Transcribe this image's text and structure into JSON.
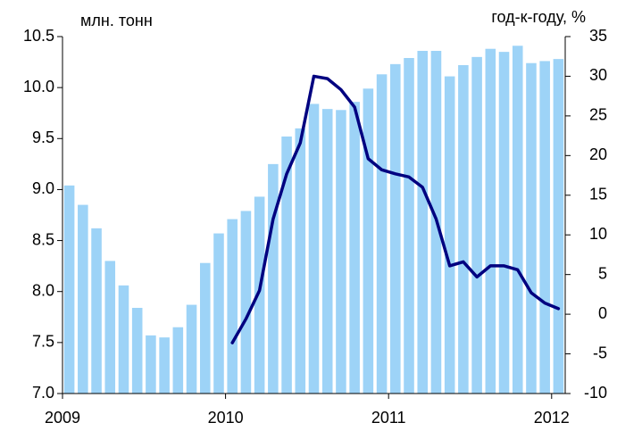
{
  "chart_data": {
    "type": "bar_line",
    "y_label": "млн. тонн",
    "y2_label": "год-к-году, %",
    "categories": [
      "2009",
      null,
      null,
      null,
      null,
      null,
      null,
      null,
      null,
      null,
      null,
      null,
      "2010",
      null,
      null,
      null,
      null,
      null,
      null,
      null,
      null,
      null,
      null,
      null,
      "2011",
      null,
      null,
      null,
      null,
      null,
      null,
      null,
      null,
      null,
      null,
      null,
      "2012"
    ],
    "series": [
      {
        "type": "bar",
        "color": "#9dd3f7",
        "values": [
          9.04,
          8.85,
          8.62,
          8.3,
          8.06,
          7.84,
          7.57,
          7.55,
          7.65,
          7.87,
          8.28,
          8.57,
          8.71,
          8.79,
          8.93,
          9.25,
          9.52,
          9.6,
          9.84,
          9.79,
          9.78,
          9.86,
          9.99,
          10.13,
          10.23,
          10.29,
          10.36,
          10.36,
          10.11,
          10.22,
          10.3,
          10.38,
          10.35,
          10.41,
          10.24,
          10.26,
          10.28
        ]
      },
      {
        "type": "line",
        "axis": "y2",
        "color": "#000080",
        "values": [
          null,
          null,
          null,
          null,
          null,
          null,
          null,
          null,
          null,
          null,
          null,
          null,
          -3.6,
          -0.6,
          3.0,
          12.0,
          17.7,
          21.6,
          30.0,
          29.7,
          28.3,
          26.1,
          19.6,
          18.2,
          17.7,
          17.3,
          16.0,
          12.0,
          6.1,
          6.6,
          4.7,
          6.1,
          6.1,
          5.6,
          2.7,
          1.4,
          0.7
        ]
      }
    ],
    "ylim": [
      7.0,
      10.5
    ],
    "yticks": [
      {
        "value": 7.0,
        "label": "7.0"
      },
      7.5,
      {
        "value": 8.0,
        "label": "8.0"
      },
      8.5,
      {
        "value": 9.0,
        "label": "9.0"
      },
      9.5,
      {
        "value": 10.0,
        "label": "10.0"
      },
      10.5
    ],
    "y2lim": [
      -10,
      35
    ],
    "y2ticks": [
      -10,
      -5,
      0,
      5,
      10,
      15,
      20,
      25,
      30,
      35
    ]
  }
}
